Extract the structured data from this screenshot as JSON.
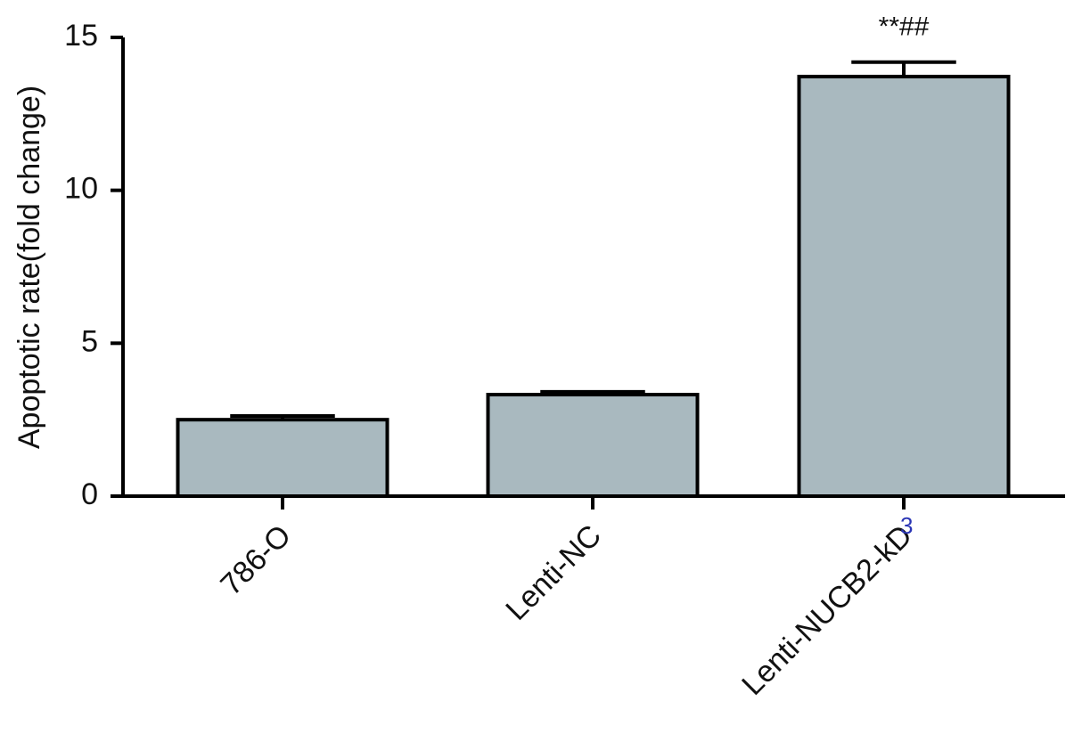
{
  "chart_data": {
    "type": "bar",
    "y_label": "Apoptotic rate(fold change)",
    "categories": [
      "786-O",
      "Lenti-NC",
      "Lenti-NUCB2-kD"
    ],
    "label_superscript": "3",
    "values": [
      2.5,
      3.32,
      13.72
    ],
    "errors": [
      0.12,
      0.09,
      0.47
    ],
    "annotation": "**##",
    "color": "#a9b9bf",
    "ylim": [
      0,
      15
    ],
    "yticks": [
      0,
      5,
      10,
      15
    ],
    "grid": false
  }
}
